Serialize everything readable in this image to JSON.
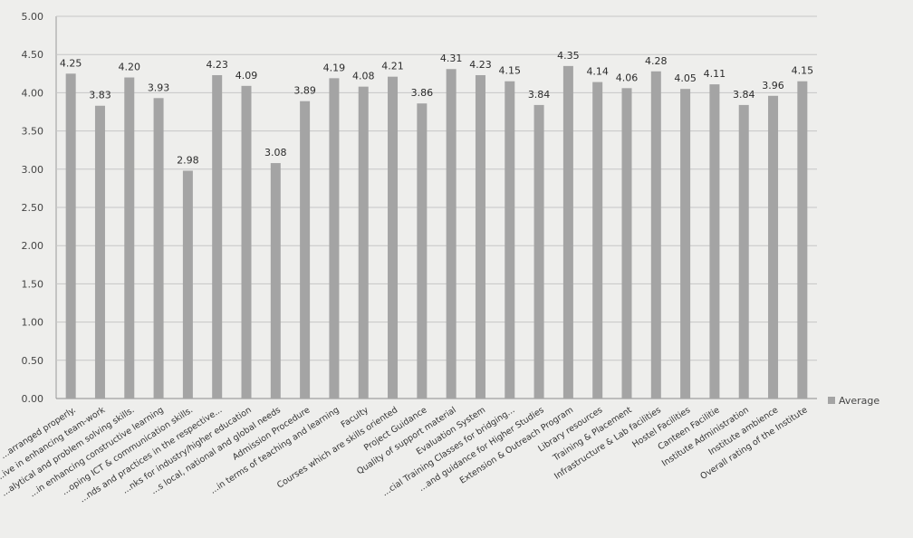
{
  "chart_data": {
    "type": "bar",
    "title": "",
    "xlabel": "",
    "ylabel": "",
    "ylim": [
      0,
      5
    ],
    "yticks": [
      "0.00",
      "0.50",
      "1.00",
      "1.50",
      "2.00",
      "2.50",
      "3.00",
      "3.50",
      "4.00",
      "4.50",
      "5.00"
    ],
    "grid": true,
    "legend_position": "right",
    "categories": [
      "...arranged properly.",
      "...ive in enhancing team-work",
      "...alytical and problem solving skills.",
      "...in enhancing constructive learning",
      "...oping ICT & communication skills.",
      "...nds and practices in the respective...",
      "...nks for industry/higher education",
      "...s local, national and global needs",
      "Admission Procedure",
      "...in terms of teaching and learning",
      "Faculty",
      "Courses which are skills oriented",
      "Project Guidance",
      "Quality of support material",
      "Evaluation System",
      "...cial Training Classes for bridging...",
      "...and guidance for Higher Studies",
      "Extension & Outreach Program",
      "Library resources",
      "Training & Placement",
      "Infrastructure & Lab facilities",
      "Hostel Facilities",
      "Canteen Facilitie",
      "Institute Administration",
      "Institute ambience",
      "Overall rating of the Institute"
    ],
    "series": [
      {
        "name": "Average",
        "color": "#a4a4a4",
        "values": [
          4.25,
          3.83,
          4.2,
          3.93,
          2.98,
          4.23,
          4.09,
          3.08,
          3.89,
          4.19,
          4.08,
          4.21,
          3.86,
          4.31,
          4.23,
          4.15,
          3.84,
          4.35,
          4.14,
          4.06,
          4.28,
          4.05,
          4.11,
          3.84,
          3.96,
          4.15
        ],
        "labels": [
          "4.25",
          "3.83",
          "4.20",
          "3.93",
          "2.98",
          "4.23",
          "4.09",
          "3.08",
          "3.89",
          "4.19",
          "4.08",
          "4.21",
          "3.86",
          "4.31",
          "4.23",
          "4.15",
          "3.84",
          "4.35",
          "4.14",
          "4.06",
          "4.28",
          "4.05",
          "4.11",
          "3.84",
          "3.96",
          "4.15"
        ]
      }
    ]
  }
}
